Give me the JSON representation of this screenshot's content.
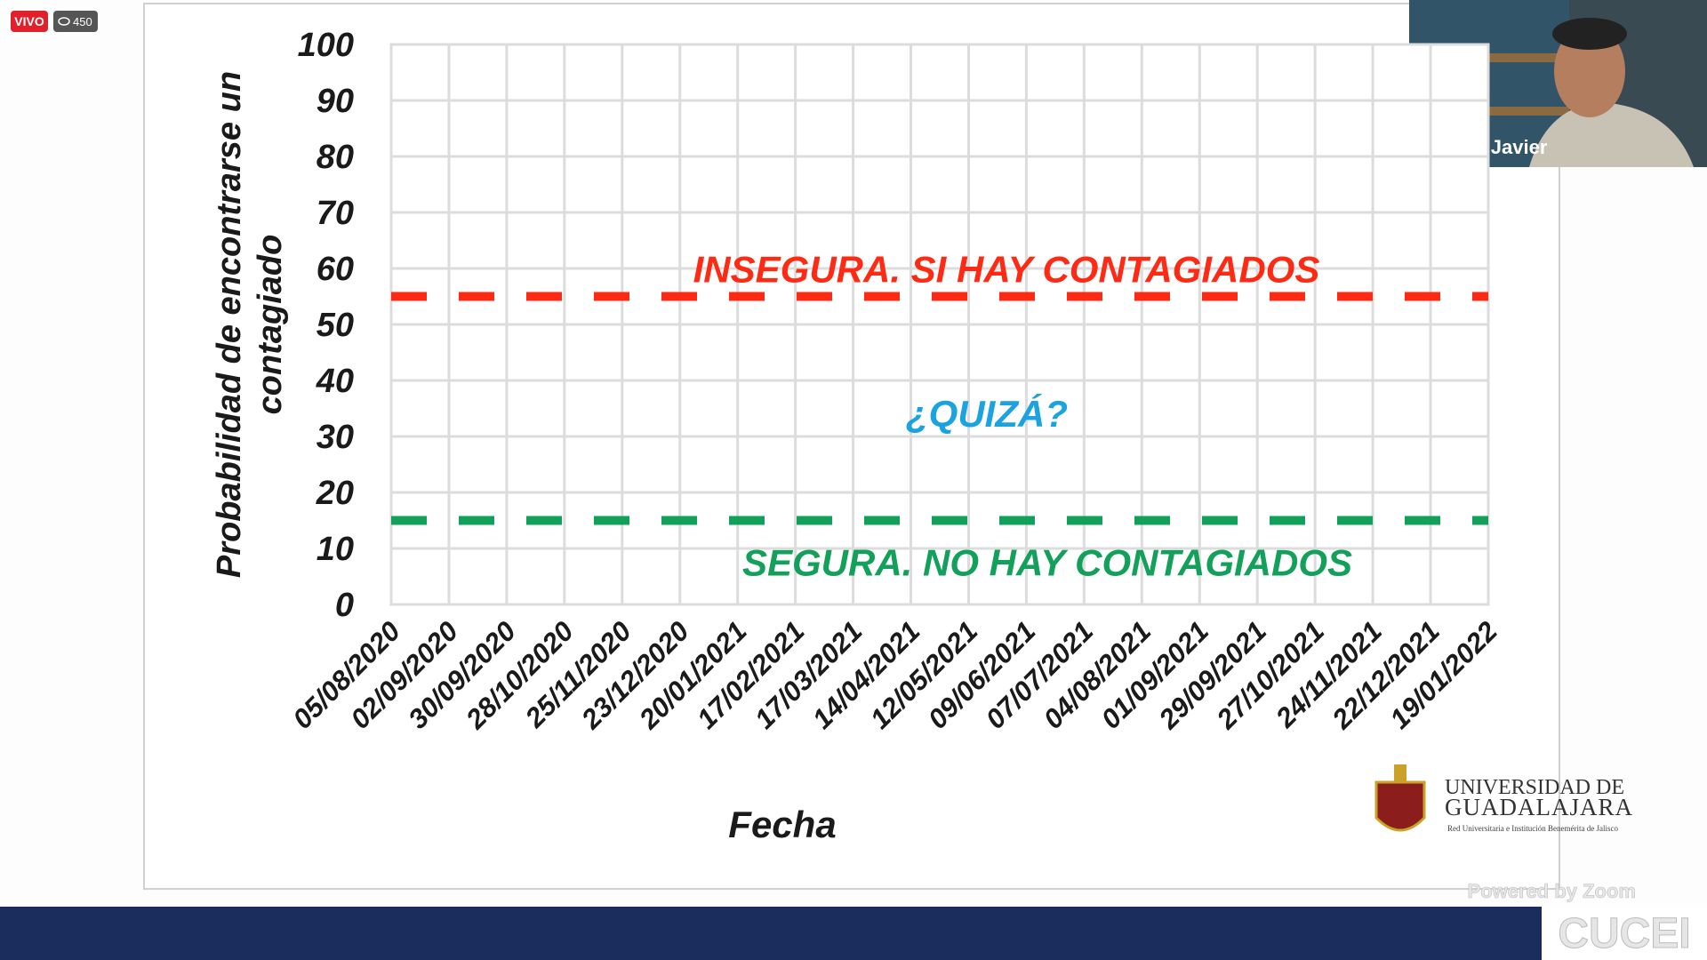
{
  "stream": {
    "live_badge": "VIVO",
    "viewer_count": 450
  },
  "video": {
    "participant_name": "Dr. Luis Javier"
  },
  "university": {
    "name_line1": "UNIVERSIDAD DE",
    "name_line2": "GUADALAJARA",
    "tagline": "Red Universitaria e Institución Benemérita de Jalisco"
  },
  "footer": {
    "watermark": "Powered by Zoom",
    "logo": "CUCEI"
  },
  "chart_data": {
    "type": "line",
    "y_label_lines": [
      "Probabilidad de encontrarse un",
      "contagiado"
    ],
    "x_label": "Fecha",
    "categories": [
      "05/08/2020",
      "02/09/2020",
      "30/09/2020",
      "28/10/2020",
      "25/11/2020",
      "23/12/2020",
      "20/01/2021",
      "17/02/2021",
      "17/03/2021",
      "14/04/2021",
      "12/05/2021",
      "09/06/2021",
      "07/07/2021",
      "04/08/2021",
      "01/09/2021",
      "29/09/2021",
      "27/10/2021",
      "24/11/2021",
      "22/12/2021",
      "19/01/2022"
    ],
    "series": [
      {
        "name": "INSEGURA. SI HAY CONTAGIADOS",
        "color": "#ff2a14",
        "dashed": true,
        "values": [
          55,
          55,
          55,
          55,
          55,
          55,
          55,
          55,
          55,
          55,
          55,
          55,
          55,
          55,
          55,
          55,
          55,
          55,
          55,
          55
        ]
      },
      {
        "name": "SEGURA. NO HAY CONTAGIADOS",
        "color": "#12a05a",
        "dashed": true,
        "values": [
          15,
          15,
          15,
          15,
          15,
          15,
          15,
          15,
          15,
          15,
          15,
          15,
          15,
          15,
          15,
          15,
          15,
          15,
          15,
          15
        ]
      }
    ],
    "annotations": [
      {
        "text": "¿QUIZÁ?",
        "color": "#1aa3e0",
        "y": 34
      }
    ],
    "ylim": [
      0,
      100
    ],
    "yticks": [
      0,
      10,
      20,
      30,
      40,
      50,
      60,
      70,
      80,
      90,
      100
    ],
    "grid": true
  }
}
